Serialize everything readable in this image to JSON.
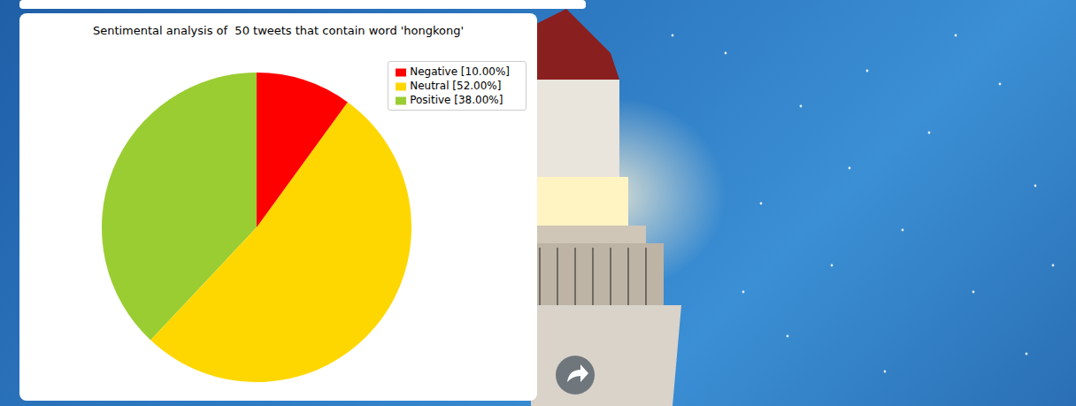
{
  "chart_data": {
    "type": "pie",
    "title": "Sentimental analysis of  50 tweets that contain word 'hongkong'",
    "categories": [
      "Positive [38.00%]",
      "Neutral [52.00%]",
      "Negative [10.00%]"
    ],
    "values": [
      38,
      52,
      10
    ],
    "colors": [
      "#9acd32",
      "#ffd700",
      "#ff0000"
    ],
    "legend": "upper right"
  }
}
